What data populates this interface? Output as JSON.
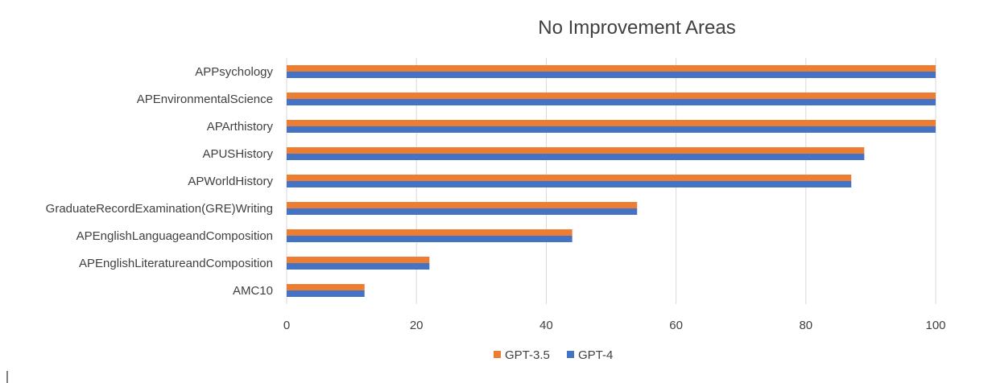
{
  "chart_data": {
    "type": "bar",
    "orientation": "horizontal",
    "title": "No Improvement Areas",
    "xlabel": "",
    "ylabel": "",
    "categories": [
      "APPsychology",
      "APEnvironmentalScience",
      "APArthistory",
      "APUSHistory",
      "APWorldHistory",
      "GraduateRecordExamination(GRE)Writing",
      "APEnglishLanguageandComposition",
      "APEnglishLiteratureandComposition",
      "AMC10"
    ],
    "series": [
      {
        "name": "GPT-3.5",
        "color": "#ED7D31",
        "values": [
          100,
          100,
          100,
          89,
          87,
          54,
          44,
          22,
          12
        ]
      },
      {
        "name": "GPT-4",
        "color": "#4472C4",
        "values": [
          100,
          100,
          100,
          89,
          87,
          54,
          44,
          22,
          12
        ]
      }
    ],
    "xlim": [
      0,
      100
    ],
    "x_ticks": [
      0,
      20,
      40,
      60,
      80,
      100
    ],
    "x_tick_labels": [
      "0",
      "20",
      "40",
      "60",
      "80",
      "100"
    ],
    "grid": true,
    "legend_position": "bottom"
  }
}
